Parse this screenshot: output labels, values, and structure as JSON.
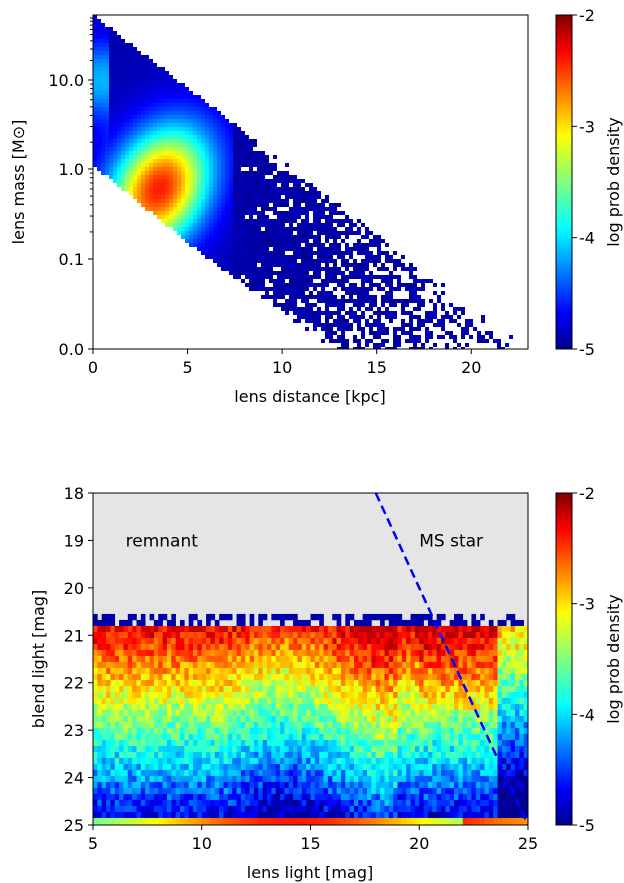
{
  "chart_data": [
    {
      "type": "heatmap",
      "xlabel": "lens distance [kpc]",
      "ylabel": "lens mass [M⊙]",
      "xlim": [
        0,
        23
      ],
      "x_ticks": [
        0,
        5,
        10,
        15,
        20
      ],
      "x_tick_labels": [
        "0",
        "5",
        "10",
        "15",
        "20"
      ],
      "y_scale": "log",
      "y_tick_labels": [
        "0.0",
        "0.1",
        "1.0",
        "10.0"
      ],
      "grid": false,
      "density_peak": {
        "x": 3.5,
        "y": 0.6
      },
      "colorbar": {
        "label": "log prob density",
        "range": [
          -5,
          -2
        ],
        "ticks": [
          -5,
          -4,
          -3,
          -2
        ],
        "tick_labels": [
          "-5",
          "-4",
          "-3",
          "-2"
        ],
        "colormap": "jet"
      }
    },
    {
      "type": "heatmap",
      "xlabel": "lens light [mag]",
      "ylabel": "blend light [mag]",
      "xlim": [
        5,
        25
      ],
      "ylim": [
        25,
        18
      ],
      "x_ticks": [
        5,
        10,
        15,
        20,
        25
      ],
      "x_tick_labels": [
        "5",
        "10",
        "15",
        "20",
        "25"
      ],
      "y_ticks": [
        18,
        19,
        20,
        21,
        22,
        23,
        24,
        25
      ],
      "y_tick_labels": [
        "18",
        "19",
        "20",
        "21",
        "22",
        "23",
        "24",
        "25"
      ],
      "grid": false,
      "annotations": [
        {
          "text": "remnant",
          "x": 6.5,
          "y": 19.0,
          "color": "#000000"
        },
        {
          "text": "MS star",
          "x": 20.0,
          "y": 19.0,
          "color": "#ff0000"
        }
      ],
      "boundary_line": {
        "style": "dashed",
        "color": "#0000ff",
        "x": [
          18.0,
          25.0
        ],
        "y": [
          18.0,
          25.0
        ]
      },
      "remnant_region_color": "#e5e5e5",
      "colorbar": {
        "label": "log prob density",
        "range": [
          -5,
          -2
        ],
        "ticks": [
          -5,
          -4,
          -3,
          -2
        ],
        "tick_labels": [
          "-5",
          "-4",
          "-3",
          "-2"
        ],
        "colormap": "jet"
      }
    }
  ]
}
